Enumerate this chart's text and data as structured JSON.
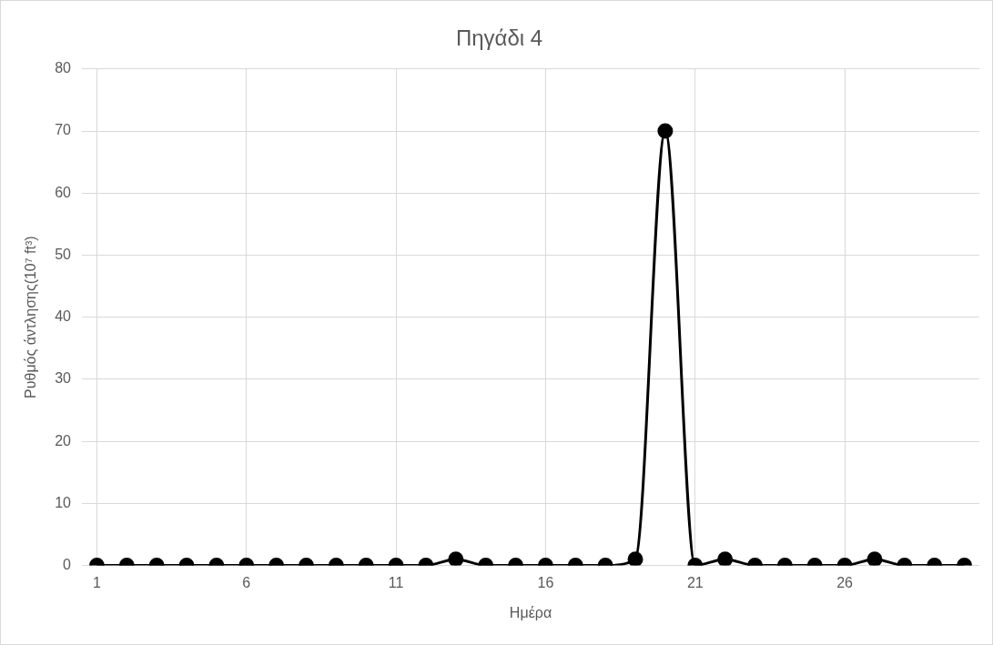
{
  "chart_data": {
    "type": "line",
    "title": "Πηγάδι 4",
    "xlabel": "Ημέρα",
    "ylabel": "Ρυθμός άντλησης(10⁷ ft³)",
    "categories": [
      "1",
      null,
      null,
      null,
      null,
      "6",
      null,
      null,
      null,
      null,
      "11",
      null,
      null,
      null,
      null,
      "16",
      null,
      null,
      null,
      null,
      "21",
      null,
      null,
      null,
      null,
      "26",
      null,
      null,
      null,
      null
    ],
    "series": [
      {
        "color": "#000000",
        "values": [
          0,
          0,
          0,
          0,
          0,
          0,
          0,
          0,
          0,
          0,
          0,
          0,
          1,
          0,
          0,
          0,
          0,
          0,
          1,
          70,
          0,
          1,
          0,
          0,
          0,
          0,
          1,
          0,
          0,
          0
        ]
      }
    ],
    "ylim": [
      0,
      80
    ],
    "yticks": [
      0,
      10,
      20,
      30,
      40,
      50,
      60,
      70,
      80
    ],
    "grid": true,
    "legend": false,
    "marker": "circle",
    "line_style": "solid"
  }
}
